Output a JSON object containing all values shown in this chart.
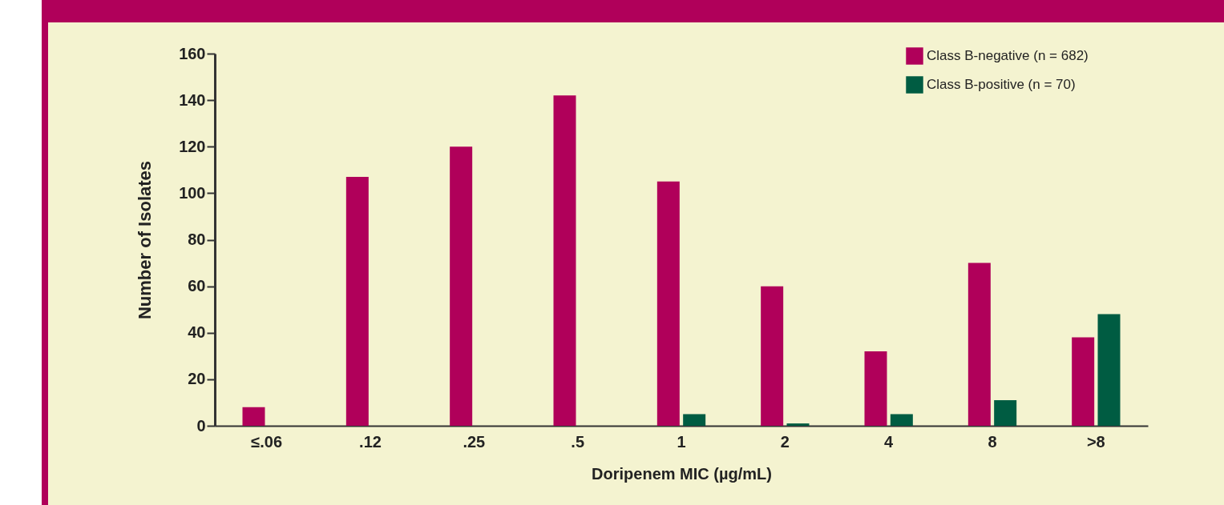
{
  "chart_data": {
    "type": "bar",
    "xlabel": "Doripenem MIC (µg/mL)",
    "ylabel": "Number of Isolates",
    "categories": [
      "≤.06",
      ".12",
      ".25",
      ".5",
      "1",
      "2",
      "4",
      "8",
      ">8"
    ],
    "series": [
      {
        "name": "Class B-negative (n = 682)",
        "color": "#b0005a",
        "values": [
          8,
          107,
          120,
          142,
          105,
          60,
          32,
          70,
          38
        ]
      },
      {
        "name": "Class B-positive (n = 70)",
        "color": "#005c42",
        "values": [
          0,
          0,
          0,
          0,
          5,
          1,
          5,
          11,
          48
        ]
      }
    ],
    "ylim": [
      0,
      160
    ],
    "yticks": [
      0,
      20,
      40,
      60,
      80,
      100,
      120,
      140,
      160
    ],
    "grid": false,
    "legend": "top right"
  }
}
